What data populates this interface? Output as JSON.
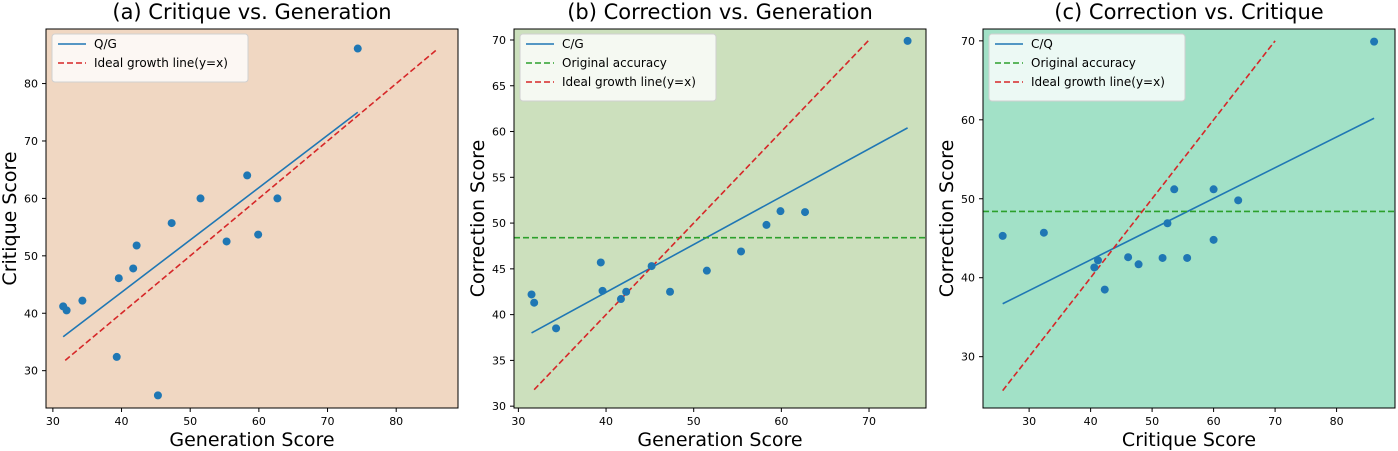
{
  "chart_data": [
    {
      "type": "scatter",
      "title": "(a) Critique vs. Generation",
      "xlabel": "Generation Score",
      "ylabel": "Critique Score",
      "xlim": [
        29,
        89
      ],
      "ylim": [
        23.5,
        89.5
      ],
      "xticks": [
        30,
        40,
        50,
        60,
        70,
        80
      ],
      "yticks": [
        30,
        40,
        50,
        60,
        70,
        80
      ],
      "background": "#f0d7c2",
      "legend_position": "top-left",
      "points": {
        "x": [
          31.5,
          32.0,
          34.3,
          39.3,
          39.6,
          41.7,
          42.2,
          45.3,
          47.3,
          51.5,
          55.3,
          58.3,
          59.9,
          62.7,
          74.4
        ],
        "y": [
          41.2,
          40.5,
          42.2,
          32.4,
          46.1,
          47.8,
          51.8,
          25.7,
          55.7,
          60.0,
          52.5,
          64.0,
          53.7,
          60.0,
          86.1
        ]
      },
      "series": [
        {
          "name": "Q/G",
          "kind": "line",
          "color": "#1f77b4",
          "x": [
            31.5,
            74.4
          ],
          "y": [
            35.9,
            75.0
          ]
        },
        {
          "name": "Ideal growth line(y=x)",
          "kind": "dashed",
          "color": "#d62728",
          "x": [
            31.8,
            86.0
          ],
          "y": [
            31.8,
            86.0
          ]
        }
      ]
    },
    {
      "type": "scatter",
      "title": "(b) Correction vs. Generation",
      "xlabel": "Generation Score",
      "ylabel": "Correction Score",
      "xlim": [
        29.5,
        76.5
      ],
      "ylim": [
        29.8,
        71.2
      ],
      "xticks": [
        30,
        40,
        50,
        60,
        70
      ],
      "yticks": [
        30,
        35,
        40,
        45,
        50,
        55,
        60,
        65,
        70
      ],
      "background": "#cce0bd",
      "legend_position": "top-left",
      "points": {
        "x": [
          31.5,
          31.8,
          34.3,
          39.4,
          39.6,
          41.7,
          42.3,
          45.2,
          47.3,
          51.5,
          55.4,
          58.3,
          59.9,
          62.7,
          74.4
        ],
        "y": [
          42.2,
          41.3,
          38.5,
          45.7,
          42.6,
          41.7,
          42.5,
          45.3,
          42.5,
          44.8,
          46.9,
          49.8,
          51.3,
          51.2,
          69.9
        ]
      },
      "series": [
        {
          "name": "C/G",
          "kind": "line",
          "color": "#1f77b4",
          "x": [
            31.5,
            74.4
          ],
          "y": [
            38.0,
            60.4
          ]
        },
        {
          "name": "Original accuracy",
          "kind": "hline",
          "color": "#2ca02c",
          "y": 48.4
        },
        {
          "name": "Ideal growth line(y=x)",
          "kind": "dashed",
          "color": "#d62728",
          "x": [
            31.8,
            70.0
          ],
          "y": [
            31.8,
            70.0
          ]
        }
      ]
    },
    {
      "type": "scatter",
      "title": "(c) Correction vs. Critique",
      "xlabel": "Critique Score",
      "ylabel": "Correction Score",
      "xlim": [
        22.5,
        89.5
      ],
      "ylim": [
        23.5,
        71.5
      ],
      "xticks": [
        30,
        40,
        50,
        60,
        70,
        80
      ],
      "yticks": [
        30,
        40,
        50,
        60,
        70
      ],
      "background": "#a2e1c7",
      "legend_position": "top-left",
      "points": {
        "x": [
          25.7,
          32.4,
          40.6,
          41.2,
          42.3,
          46.1,
          47.8,
          51.7,
          52.5,
          53.6,
          55.7,
          60.0,
          60.0,
          64.0,
          86.1
        ],
        "y": [
          45.3,
          45.7,
          41.3,
          42.2,
          38.5,
          42.6,
          41.7,
          42.5,
          46.9,
          51.2,
          42.5,
          44.8,
          51.2,
          49.8,
          69.9
        ]
      },
      "series": [
        {
          "name": "C/Q",
          "kind": "line",
          "color": "#1f77b4",
          "x": [
            25.7,
            86.1
          ],
          "y": [
            36.7,
            60.2
          ]
        },
        {
          "name": "Original accuracy",
          "kind": "hline",
          "color": "#2ca02c",
          "y": 48.4
        },
        {
          "name": "Ideal growth line(y=x)",
          "kind": "dashed",
          "color": "#d62728",
          "x": [
            25.7,
            70.0
          ],
          "y": [
            25.7,
            70.0
          ]
        }
      ]
    }
  ]
}
